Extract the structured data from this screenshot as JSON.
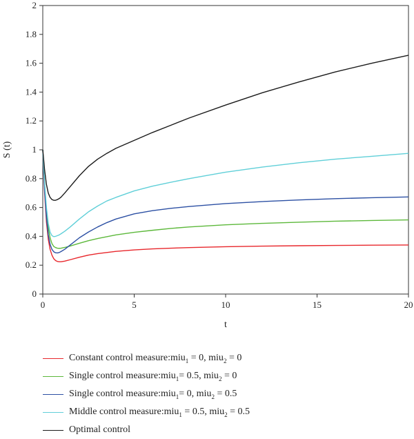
{
  "chart_data": {
    "type": "line",
    "title": "",
    "xlabel": "t",
    "ylabel": "S (t)",
    "xlim": [
      0,
      20
    ],
    "ylim": [
      0,
      2
    ],
    "xticks": [
      "0",
      "5",
      "10",
      "15",
      "20"
    ],
    "yticks": [
      "0",
      "0.2",
      "0.4",
      "0.6",
      "0.8",
      "1",
      "1.2",
      "1.4",
      "1.6",
      "1.8",
      "2"
    ],
    "grid": false,
    "legend_position": "bottom",
    "series": [
      {
        "name": "Constant control measure:miu1 = 0, miu2 = 0",
        "label_parts": [
          [
            "Constant control measure:miu",
            ""
          ],
          [
            "1",
            "sub"
          ],
          [
            " = 0, miu",
            ""
          ],
          [
            "2",
            "sub"
          ],
          [
            " = 0",
            ""
          ]
        ],
        "color": "#e8262b",
        "x": [
          0,
          0.05,
          0.1,
          0.2,
          0.3,
          0.4,
          0.5,
          0.6,
          0.7,
          0.8,
          0.9,
          1.0,
          1.2,
          1.5,
          2,
          2.5,
          3,
          4,
          5,
          6,
          7,
          8,
          10,
          12,
          14,
          16,
          18,
          20
        ],
        "y": [
          1.0,
          0.83,
          0.7,
          0.5,
          0.38,
          0.31,
          0.27,
          0.245,
          0.232,
          0.226,
          0.224,
          0.224,
          0.228,
          0.238,
          0.255,
          0.27,
          0.28,
          0.296,
          0.306,
          0.313,
          0.318,
          0.322,
          0.328,
          0.332,
          0.335,
          0.337,
          0.339,
          0.34
        ]
      },
      {
        "name": "Single control measure:miu1 = 0.5, miu2 = 0",
        "label_parts": [
          [
            "Single control measure:miu",
            ""
          ],
          [
            "1",
            "sub"
          ],
          [
            "= 0.5, miu",
            ""
          ],
          [
            "2",
            "sub"
          ],
          [
            " = 0",
            ""
          ]
        ],
        "color": "#5cb83a",
        "x": [
          0,
          0.05,
          0.1,
          0.2,
          0.3,
          0.4,
          0.5,
          0.6,
          0.7,
          0.8,
          0.9,
          1.0,
          1.2,
          1.5,
          2,
          2.5,
          3,
          4,
          5,
          6,
          7,
          8,
          10,
          12,
          14,
          16,
          18,
          20
        ],
        "y": [
          1.0,
          0.87,
          0.76,
          0.58,
          0.46,
          0.39,
          0.35,
          0.33,
          0.322,
          0.318,
          0.317,
          0.318,
          0.323,
          0.333,
          0.352,
          0.37,
          0.385,
          0.41,
          0.428,
          0.442,
          0.455,
          0.465,
          0.48,
          0.49,
          0.498,
          0.505,
          0.51,
          0.514
        ]
      },
      {
        "name": "Single control measure:miu1 = 0, miu2 = 0.5",
        "label_parts": [
          [
            "Single control measure:miu",
            ""
          ],
          [
            "1",
            "sub"
          ],
          [
            "= 0, miu",
            ""
          ],
          [
            "2",
            "sub"
          ],
          [
            " = 0.5",
            ""
          ]
        ],
        "color": "#2b4fa3",
        "x": [
          0,
          0.05,
          0.1,
          0.2,
          0.3,
          0.4,
          0.5,
          0.6,
          0.7,
          0.8,
          0.9,
          1.0,
          1.2,
          1.5,
          2,
          2.5,
          3,
          3.5,
          4,
          5,
          6,
          7,
          8,
          10,
          12,
          14,
          16,
          18,
          20
        ],
        "y": [
          1.0,
          0.85,
          0.72,
          0.53,
          0.41,
          0.345,
          0.31,
          0.293,
          0.286,
          0.285,
          0.288,
          0.295,
          0.31,
          0.34,
          0.39,
          0.43,
          0.465,
          0.495,
          0.52,
          0.556,
          0.578,
          0.594,
          0.607,
          0.627,
          0.641,
          0.652,
          0.661,
          0.668,
          0.673
        ]
      },
      {
        "name": "Middle control measure:miu1 = 0.5, miu2 = 0.5",
        "label_parts": [
          [
            "Middle control measure:miu",
            ""
          ],
          [
            "1",
            "sub"
          ],
          [
            " = 0.5, miu",
            ""
          ],
          [
            "2",
            "sub"
          ],
          [
            " = 0.5",
            ""
          ]
        ],
        "color": "#5fcfd8",
        "x": [
          0,
          0.05,
          0.1,
          0.2,
          0.3,
          0.4,
          0.5,
          0.6,
          0.7,
          0.8,
          0.9,
          1.0,
          1.2,
          1.5,
          2,
          2.5,
          3,
          3.5,
          4,
          5,
          6,
          7,
          8,
          10,
          12,
          14,
          16,
          18,
          20
        ],
        "y": [
          1.0,
          0.88,
          0.77,
          0.6,
          0.49,
          0.43,
          0.405,
          0.398,
          0.4,
          0.405,
          0.41,
          0.418,
          0.435,
          0.465,
          0.52,
          0.57,
          0.61,
          0.645,
          0.67,
          0.715,
          0.748,
          0.775,
          0.8,
          0.845,
          0.88,
          0.91,
          0.935,
          0.955,
          0.975
        ]
      },
      {
        "name": "Optimal control",
        "label_parts": [
          [
            "Optimal control",
            ""
          ]
        ],
        "color": "#1a1a1a",
        "x": [
          0,
          0.05,
          0.1,
          0.2,
          0.3,
          0.4,
          0.5,
          0.6,
          0.7,
          0.8,
          0.9,
          1.0,
          1.2,
          1.5,
          2,
          2.5,
          3,
          3.5,
          4,
          5,
          6,
          7,
          8,
          10,
          12,
          14,
          16,
          18,
          20
        ],
        "y": [
          1.0,
          0.93,
          0.86,
          0.76,
          0.7,
          0.67,
          0.655,
          0.65,
          0.65,
          0.655,
          0.662,
          0.672,
          0.7,
          0.745,
          0.82,
          0.885,
          0.935,
          0.975,
          1.01,
          1.065,
          1.12,
          1.17,
          1.22,
          1.31,
          1.395,
          1.47,
          1.54,
          1.6,
          1.655
        ]
      }
    ]
  }
}
